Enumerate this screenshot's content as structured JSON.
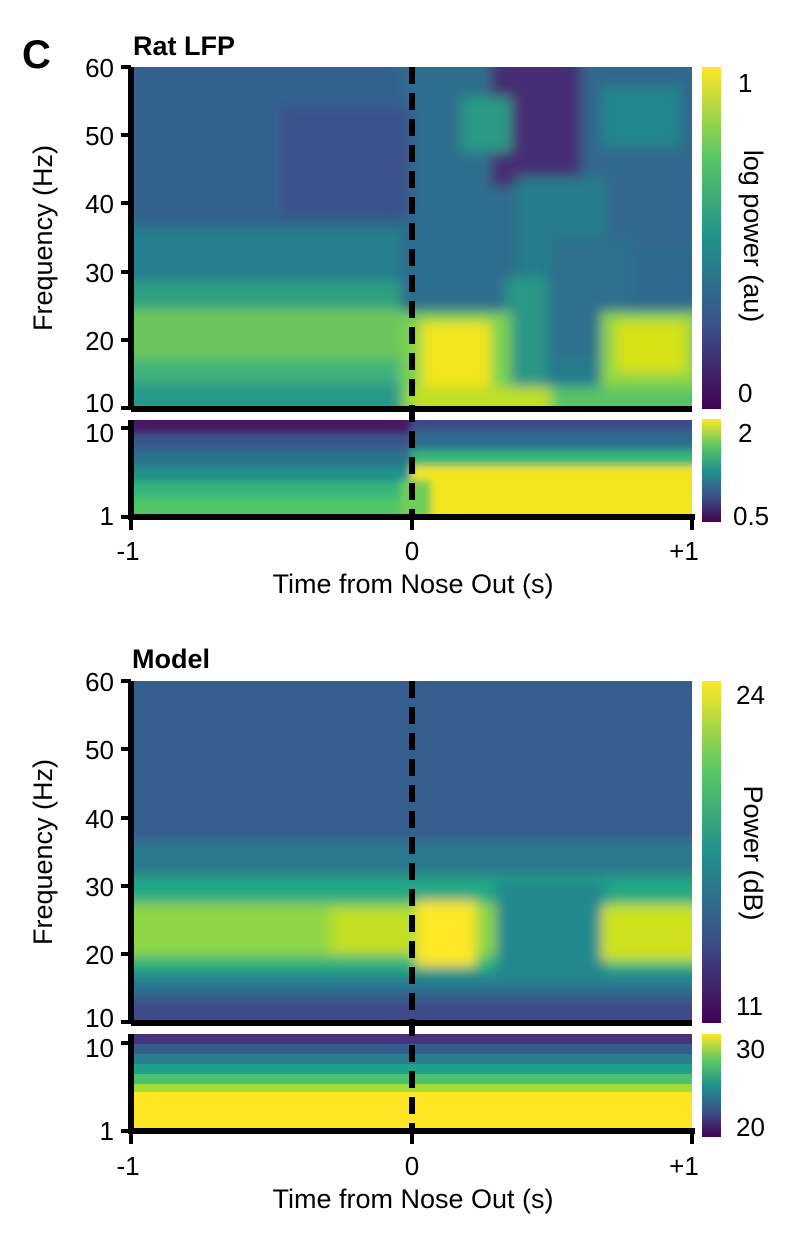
{
  "panel_letter": "C",
  "chart_data": [
    {
      "type": "heatmap",
      "title": "Rat LFP",
      "xlabel": "Time from Nose Out (s)",
      "ylabel": "Frequency (Hz)",
      "x_ticks": [
        "-1",
        "0",
        "+1"
      ],
      "xlim": [
        -1,
        1
      ],
      "event_line_x": 0,
      "upper": {
        "ylim": [
          10,
          60
        ],
        "y_ticks": [
          "10",
          "20",
          "30",
          "40",
          "50",
          "60"
        ],
        "colorbar_label": "log power (au)",
        "colorbar_ticks": [
          "1",
          "0"
        ],
        "clim": [
          0,
          1
        ]
      },
      "lower": {
        "scale": "log",
        "ylim": [
          1,
          12
        ],
        "y_ticks": [
          "1",
          "10"
        ],
        "colorbar_ticks": [
          "2",
          "0.5"
        ],
        "clim": [
          0.5,
          2
        ]
      }
    },
    {
      "type": "heatmap",
      "title": "Model",
      "xlabel": "Time from Nose Out (s)",
      "ylabel": "Frequency (Hz)",
      "x_ticks": [
        "-1",
        "0",
        "+1"
      ],
      "xlim": [
        -1,
        1
      ],
      "event_line_x": 0,
      "upper": {
        "ylim": [
          10,
          60
        ],
        "y_ticks": [
          "10",
          "20",
          "30",
          "40",
          "50",
          "60"
        ],
        "colorbar_label": "Power (dB)",
        "colorbar_ticks": [
          "24",
          "11"
        ],
        "clim": [
          11,
          24
        ]
      },
      "lower": {
        "scale": "log",
        "ylim": [
          1,
          12
        ],
        "y_ticks": [
          "1",
          "10"
        ],
        "colorbar_ticks": [
          "30",
          "20"
        ],
        "clim": [
          20,
          30
        ]
      }
    }
  ],
  "colormap": [
    "#440154",
    "#3b528b",
    "#21918c",
    "#5ec962",
    "#fde725"
  ]
}
